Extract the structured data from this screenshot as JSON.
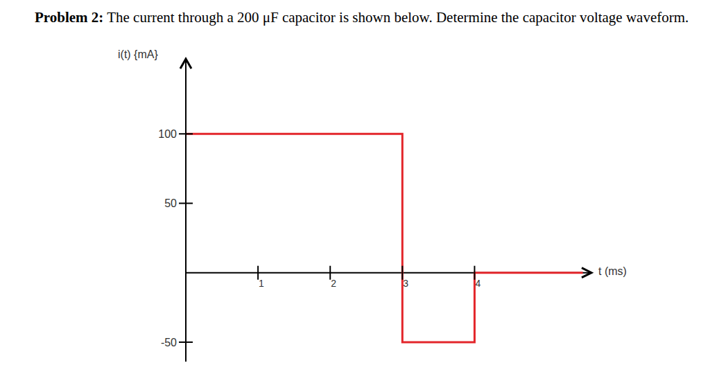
{
  "chart_data": {
    "type": "line",
    "title": "Problem 2: The current through a 200 μF capacitor is shown below. Determine the capacitor voltage waveform.",
    "x_label": "t (ms)",
    "y_label": "i(t) {mA}",
    "x": [
      0,
      3,
      3,
      4,
      4,
      5.5
    ],
    "values": [
      100,
      100,
      -50,
      -50,
      0,
      0
    ],
    "color": "#e3262b",
    "xlim": [
      0,
      5.6
    ],
    "ylim": [
      -64,
      154
    ],
    "xticks": [
      1,
      2,
      3,
      4
    ],
    "yticks": [
      -50,
      50,
      100
    ],
    "grid": false
  }
}
